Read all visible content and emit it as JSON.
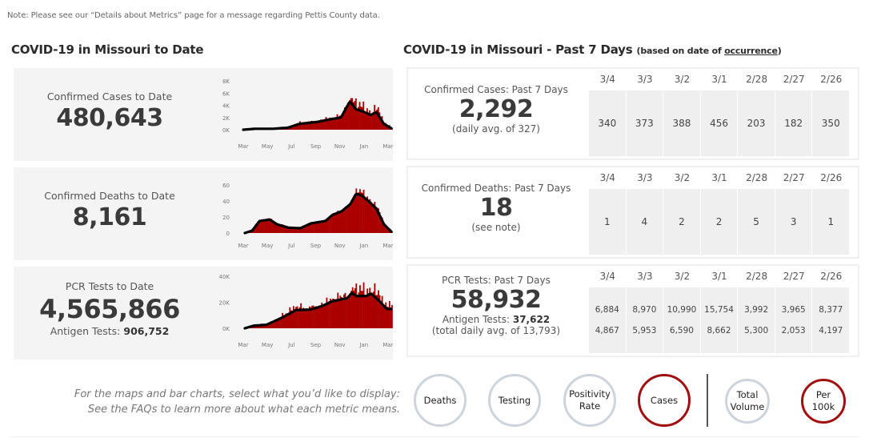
{
  "note": "Note: Please see our “Details about Metrics” page for a message regarding Pettis County data.",
  "left_section": {
    "title": "COVID-19 in Missouri to Date",
    "cards": [
      {
        "label": "Confirmed Cases to Date",
        "value": "480,643",
        "chart": {
          "y_ticks": [
            "8K",
            "6K",
            "4K",
            "2K",
            "0K"
          ],
          "x_ticks": [
            "Mar",
            "May",
            "Jul",
            "Sep",
            "Nov",
            "Jan",
            "Mar"
          ]
        }
      },
      {
        "label": "Confirmed Deaths to Date",
        "value": "8,161",
        "chart": {
          "y_ticks": [
            "60",
            "40",
            "20",
            "0"
          ],
          "x_ticks": [
            "Mar",
            "May",
            "Jul",
            "Sep",
            "Nov",
            "Jan",
            "Mar"
          ]
        }
      },
      {
        "label": "PCR Tests to Date",
        "value": "4,565,866",
        "sub_label": "Antigen Tests: ",
        "sub_value": "906,752",
        "chart": {
          "y_ticks": [
            "40K",
            "20K",
            "0K"
          ],
          "x_ticks": [
            "Mar",
            "May",
            "Jul",
            "Sep",
            "Nov",
            "Jan",
            "Mar"
          ]
        }
      }
    ]
  },
  "right_section": {
    "title": "COVID-19 in Missouri - Past 7 Days",
    "subtitle_prefix": "(based on date of ",
    "subtitle_link": "occurrence",
    "subtitle_suffix": ")",
    "dates": [
      "3/4",
      "3/3",
      "3/2",
      "3/1",
      "2/28",
      "2/27",
      "2/26"
    ],
    "cards": [
      {
        "label": "Confirmed Cases: Past 7 Days",
        "value": "2,292",
        "subline": "(daily avg. of 327)",
        "daily": [
          "340",
          "373",
          "388",
          "456",
          "203",
          "182",
          "350"
        ]
      },
      {
        "label": "Confirmed Deaths: Past 7 Days",
        "value": "18",
        "subline": "(see note)",
        "daily": [
          "1",
          "4",
          "2",
          "2",
          "5",
          "3",
          "1"
        ]
      },
      {
        "label": "PCR Tests: Past 7 Days",
        "value": "58,932",
        "sub_label": "Antigen Tests: ",
        "sub_value": "37,622",
        "subline": "(total daily avg. of 13,793)",
        "daily_pcr": [
          "6,884",
          "8,970",
          "10,990",
          "15,754",
          "3,992",
          "3,965",
          "8,377"
        ],
        "daily_antigen": [
          "4,867",
          "5,953",
          "6,590",
          "8,662",
          "5,300",
          "2,053",
          "4,197"
        ]
      }
    ]
  },
  "selector": {
    "hint_line1": "For the maps and bar charts, select what you’d like to display:",
    "hint_line2": "See the FAQs to learn more about what each metric means.",
    "metric_buttons": [
      {
        "label": "Deaths",
        "active": false
      },
      {
        "label": "Testing",
        "active": false
      },
      {
        "label": "Positivity Rate",
        "active": false
      },
      {
        "label": "Cases",
        "active": true
      }
    ],
    "scale_buttons": [
      {
        "label": "Total Volume",
        "active": false
      },
      {
        "label": "Per 100k",
        "active": true
      }
    ]
  },
  "colors": {
    "bar": "#aa0000",
    "trend": "#000000",
    "active_ring": "#a10f0f",
    "inactive_ring": "#cdd4dc"
  }
}
